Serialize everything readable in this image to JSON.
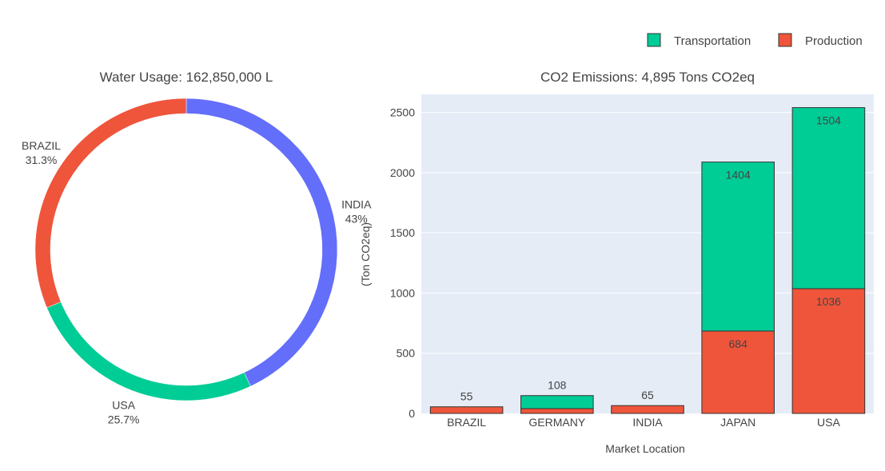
{
  "chart_data": [
    {
      "type": "pie",
      "hole": true,
      "title": "Water Usage: 162,850,000 L",
      "labels": [
        "INDIA",
        "USA",
        "BRAZIL"
      ],
      "values": [
        43.0,
        25.7,
        31.3
      ],
      "percent_labels": [
        "43%",
        "25.7%",
        "31.3%"
      ],
      "colors": [
        "#636EFA",
        "#00CC96",
        "#EF553B"
      ]
    },
    {
      "type": "bar",
      "stacked": true,
      "title": "CO2 Emissions: 4,895 Tons CO2eq",
      "xlabel": "Market Location",
      "ylabel": "(Ton CO2eq)",
      "categories": [
        "BRAZIL",
        "GERMANY",
        "INDIA",
        "JAPAN",
        "USA"
      ],
      "ylim": [
        0,
        2650
      ],
      "yticks": [
        0,
        500,
        1000,
        1500,
        2000,
        2500
      ],
      "grid": true,
      "legend_position": "top-right",
      "series": [
        {
          "name": "Production",
          "color": "#EF553B",
          "values": [
            55,
            40,
            65,
            684,
            1036
          ],
          "labels": [
            "55",
            "",
            "65",
            "684",
            "1036"
          ]
        },
        {
          "name": "Transportation",
          "color": "#00CC96",
          "values": [
            0,
            108,
            0,
            1404,
            1504
          ],
          "labels": [
            "",
            "108",
            "",
            "1404",
            "1504"
          ]
        }
      ]
    }
  ]
}
